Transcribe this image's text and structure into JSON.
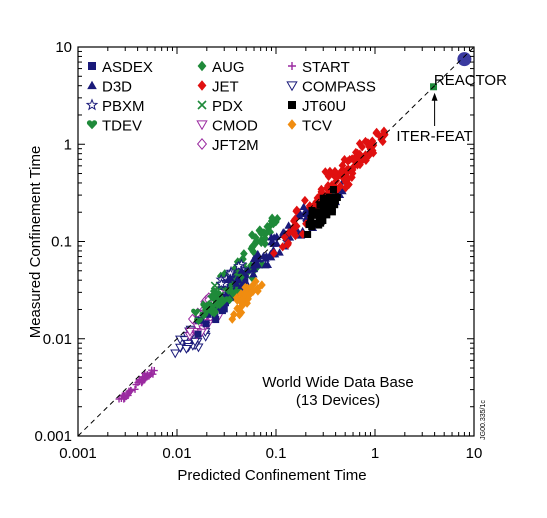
{
  "chart_data": {
    "type": "scatter",
    "scale": "log-log",
    "xlabel": "Predicted Confinement Time",
    "ylabel": "Measured Confinement Time",
    "xlim": [
      0.001,
      10
    ],
    "ylim": [
      0.001,
      10
    ],
    "x_ticks": [
      0.001,
      0.01,
      0.1,
      1,
      10
    ],
    "x_tick_labels": [
      "0.001",
      "0.01",
      "0.1",
      "1",
      "10"
    ],
    "y_ticks": [
      0.001,
      0.01,
      0.1,
      1,
      10
    ],
    "y_tick_labels": [
      "0.001",
      "0.01",
      "0.1",
      "1",
      "10"
    ],
    "reference_line": {
      "style": "dashed",
      "from": [
        0.001,
        0.001
      ],
      "to": [
        10,
        10
      ]
    },
    "annotations": [
      {
        "text": "World Wide Data Base",
        "position": "lower-right"
      },
      {
        "text": "(13 Devices)",
        "position": "lower-right"
      },
      {
        "text": "REACTOR",
        "x": 8.0,
        "y": 7.5
      },
      {
        "text": "ITER-FEAT",
        "x": 4.0,
        "y": 3.9,
        "arrow": true
      }
    ],
    "side_label": "JG00.335/1c",
    "legend_columns": [
      [
        {
          "name": "ASDEX",
          "marker": "square-filled",
          "color": "#1a1a7a"
        },
        {
          "name": "D3D",
          "marker": "triangle-filled",
          "color": "#1a1a7a"
        },
        {
          "name": "PBXM",
          "marker": "star-open",
          "color": "#1a1a7a"
        },
        {
          "name": "TDEV",
          "marker": "heart-filled",
          "color": "#1f8a3a"
        }
      ],
      [
        {
          "name": "AUG",
          "marker": "diamond-filled",
          "color": "#1f8a3a"
        },
        {
          "name": "JET",
          "marker": "diamond-filled",
          "color": "#e01010"
        },
        {
          "name": "PDX",
          "marker": "x",
          "color": "#1f8a3a"
        },
        {
          "name": "CMOD",
          "marker": "triangle-down-open",
          "color": "#9a2aa0"
        },
        {
          "name": "JFT2M",
          "marker": "diamond-open",
          "color": "#9a2aa0"
        }
      ],
      [
        {
          "name": "START",
          "marker": "plus",
          "color": "#9a2aa0"
        },
        {
          "name": "COMPASS",
          "marker": "triangle-down-open",
          "color": "#1a1a7a"
        },
        {
          "name": "JT60U",
          "marker": "square-filled",
          "color": "#000000"
        },
        {
          "name": "TCV",
          "marker": "diamond-filled",
          "color": "#f08c10"
        }
      ]
    ],
    "series": [
      {
        "name": "START",
        "marker": "plus",
        "color": "#9a2aa0",
        "spread": 0.05,
        "centers": [
          [
            0.0028,
            0.0024
          ],
          [
            0.003,
            0.0026
          ],
          [
            0.0035,
            0.003
          ],
          [
            0.0042,
            0.0036
          ],
          [
            0.0048,
            0.0042
          ],
          [
            0.0055,
            0.0045
          ],
          [
            0.0045,
            0.0038
          ]
        ]
      },
      {
        "name": "COMPASS",
        "marker": "triangle-down-open",
        "color": "#1a1a7a",
        "spread": 0.1,
        "centers": [
          [
            0.012,
            0.008
          ],
          [
            0.013,
            0.01
          ],
          [
            0.015,
            0.012
          ],
          [
            0.018,
            0.01
          ],
          [
            0.014,
            0.009
          ]
        ]
      },
      {
        "name": "CMOD",
        "marker": "triangle-down-open",
        "color": "#9a2aa0",
        "spread": 0.1,
        "centers": [
          [
            0.016,
            0.012
          ],
          [
            0.019,
            0.014
          ],
          [
            0.022,
            0.016
          ],
          [
            0.02,
            0.018
          ]
        ]
      },
      {
        "name": "JFT2M",
        "marker": "diamond-open",
        "color": "#9a2aa0",
        "spread": 0.1,
        "centers": [
          [
            0.017,
            0.018
          ],
          [
            0.02,
            0.022
          ],
          [
            0.023,
            0.025
          ],
          [
            0.026,
            0.028
          ]
        ]
      },
      {
        "name": "ASDEX",
        "marker": "square-filled",
        "color": "#1a1a7a",
        "spread": 0.15,
        "centers": [
          [
            0.02,
            0.015
          ],
          [
            0.025,
            0.02
          ],
          [
            0.03,
            0.025
          ],
          [
            0.035,
            0.03
          ],
          [
            0.04,
            0.035
          ]
        ]
      },
      {
        "name": "PDX",
        "marker": "x",
        "color": "#1f8a3a",
        "spread": 0.12,
        "centers": [
          [
            0.025,
            0.03
          ],
          [
            0.03,
            0.035
          ],
          [
            0.035,
            0.04
          ],
          [
            0.04,
            0.045
          ]
        ]
      },
      {
        "name": "TDEV",
        "marker": "heart-filled",
        "color": "#1f8a3a",
        "spread": 0.12,
        "centers": [
          [
            0.02,
            0.02
          ],
          [
            0.025,
            0.025
          ],
          [
            0.03,
            0.03
          ],
          [
            0.03,
            0.025
          ]
        ]
      },
      {
        "name": "AUG",
        "marker": "diamond-filled",
        "color": "#1f8a3a",
        "spread": 0.12,
        "centers": [
          [
            0.03,
            0.04
          ],
          [
            0.04,
            0.05
          ],
          [
            0.05,
            0.07
          ],
          [
            0.06,
            0.09
          ],
          [
            0.07,
            0.12
          ],
          [
            0.08,
            0.15
          ],
          [
            0.035,
            0.03
          ],
          [
            0.045,
            0.04
          ],
          [
            0.06,
            0.06
          ],
          [
            0.09,
            0.13
          ]
        ]
      },
      {
        "name": "PBXM",
        "marker": "star-open",
        "color": "#1a1a7a",
        "spread": 0.08,
        "centers": [
          [
            0.03,
            0.04
          ],
          [
            0.04,
            0.05
          ]
        ]
      },
      {
        "name": "D3D",
        "marker": "triangle-filled",
        "color": "#1a1a7a",
        "spread": 0.15,
        "centers": [
          [
            0.04,
            0.04
          ],
          [
            0.05,
            0.05
          ],
          [
            0.07,
            0.07
          ],
          [
            0.09,
            0.09
          ],
          [
            0.12,
            0.12
          ],
          [
            0.15,
            0.15
          ],
          [
            0.2,
            0.2
          ],
          [
            0.25,
            0.22
          ],
          [
            0.3,
            0.25
          ],
          [
            0.35,
            0.3
          ],
          [
            0.06,
            0.05
          ],
          [
            0.08,
            0.07
          ],
          [
            0.1,
            0.08
          ],
          [
            0.18,
            0.14
          ]
        ]
      },
      {
        "name": "TCV",
        "marker": "diamond-filled",
        "color": "#f08c10",
        "spread": 0.1,
        "centers": [
          [
            0.045,
            0.02
          ],
          [
            0.05,
            0.025
          ],
          [
            0.055,
            0.03
          ],
          [
            0.06,
            0.035
          ],
          [
            0.05,
            0.03
          ]
        ]
      },
      {
        "name": "JET",
        "marker": "diamond-filled",
        "color": "#e01010",
        "spread": 0.14,
        "centers": [
          [
            0.13,
            0.11
          ],
          [
            0.16,
            0.13
          ],
          [
            0.2,
            0.18
          ],
          [
            0.25,
            0.22
          ],
          [
            0.3,
            0.28
          ],
          [
            0.35,
            0.35
          ],
          [
            0.4,
            0.4
          ],
          [
            0.45,
            0.45
          ],
          [
            0.5,
            0.55
          ],
          [
            0.6,
            0.6
          ],
          [
            0.7,
            0.7
          ],
          [
            0.8,
            0.85
          ],
          [
            0.9,
            1.0
          ],
          [
            0.55,
            0.5
          ],
          [
            0.65,
            0.75
          ],
          [
            0.75,
            0.65
          ],
          [
            0.85,
            0.95
          ],
          [
            0.22,
            0.25
          ],
          [
            0.28,
            0.24
          ],
          [
            0.38,
            0.5
          ],
          [
            0.42,
            0.32
          ],
          [
            0.95,
            1.1
          ]
        ]
      },
      {
        "name": "JT60U",
        "marker": "square-filled",
        "color": "#000000",
        "spread": 0.1,
        "centers": [
          [
            0.25,
            0.15
          ],
          [
            0.28,
            0.18
          ],
          [
            0.3,
            0.2
          ],
          [
            0.32,
            0.22
          ],
          [
            0.35,
            0.25
          ],
          [
            0.33,
            0.28
          ],
          [
            0.3,
            0.17
          ],
          [
            0.27,
            0.21
          ]
        ]
      },
      {
        "name": "ITER-FEAT",
        "marker": "square-filled",
        "color": "#1f8a3a",
        "size": 7,
        "points": [
          [
            3.9,
            3.9
          ]
        ]
      },
      {
        "name": "REACTOR",
        "marker": "circle-filled",
        "color": "#3a3aa0",
        "size": 14,
        "points": [
          [
            8.0,
            7.5
          ]
        ]
      }
    ]
  }
}
